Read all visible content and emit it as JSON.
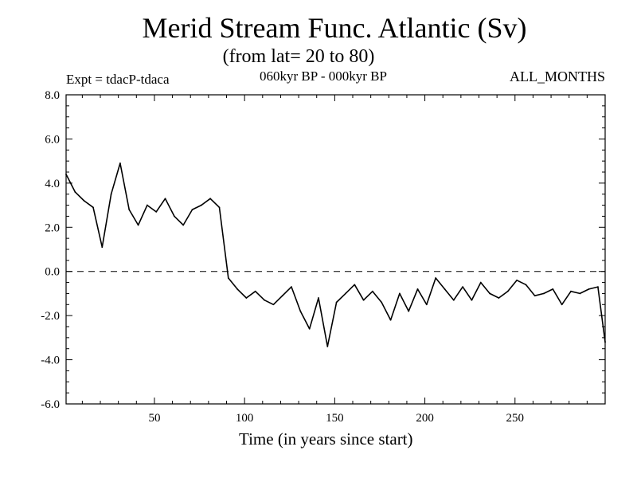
{
  "chart_data": {
    "type": "line",
    "title": "Merid Stream Func. Atlantic (Sv)",
    "subtitle": "(from lat= 20 to 80)",
    "annotations": {
      "left": "Expt = tdacP-tdaca",
      "center": "060kyr BP - 000kyr BP",
      "right": "ALL_MONTHS"
    },
    "xlabel": "Time (in years since start)",
    "ylabel": "",
    "xlim": [
      1,
      300
    ],
    "ylim": [
      -6,
      8
    ],
    "xticks": [
      50,
      100,
      150,
      200,
      250
    ],
    "xtick_labels": [
      "50",
      "100",
      "150",
      "200",
      "250"
    ],
    "yticks": [
      -6,
      -4,
      -2,
      0,
      2,
      4,
      6,
      8
    ],
    "ytick_labels": [
      "-6.0",
      "-4.0",
      "-2.0",
      "0.0",
      "2.0",
      "4.0",
      "6.0",
      "8.0"
    ],
    "zero_line": "dashed",
    "grid": false,
    "line_color": "#000000",
    "series": [
      {
        "x": [
          1,
          6,
          11,
          16,
          21,
          26,
          31,
          36,
          41,
          46,
          51,
          56,
          61,
          66,
          71,
          76,
          81,
          86,
          91,
          96,
          101,
          106,
          111,
          116,
          121,
          126,
          131,
          136,
          141,
          146,
          151,
          156,
          161,
          166,
          171,
          176,
          181,
          186,
          191,
          196,
          201,
          206,
          211,
          216,
          221,
          226,
          231,
          236,
          241,
          246,
          251,
          256,
          261,
          266,
          271,
          276,
          281,
          286,
          291,
          296,
          300
        ],
        "values": [
          4.4,
          3.6,
          3.2,
          2.9,
          1.1,
          3.5,
          4.9,
          2.8,
          2.1,
          3.0,
          2.7,
          3.3,
          2.5,
          2.1,
          2.8,
          3.0,
          3.3,
          2.9,
          -0.3,
          -0.8,
          -1.2,
          -0.9,
          -1.3,
          -1.5,
          -1.1,
          -0.7,
          -1.8,
          -2.6,
          -1.2,
          -3.4,
          -1.4,
          -1.0,
          -0.6,
          -1.3,
          -0.9,
          -1.4,
          -2.2,
          -1.0,
          -1.8,
          -0.8,
          -1.5,
          -0.3,
          -0.8,
          -1.3,
          -0.7,
          -1.3,
          -0.5,
          -1.0,
          -1.2,
          -0.9,
          -0.4,
          -0.6,
          -1.1,
          -1.0,
          -0.8,
          -1.5,
          -0.9,
          -1.0,
          -0.8,
          -0.7,
          -3.2
        ]
      }
    ]
  }
}
